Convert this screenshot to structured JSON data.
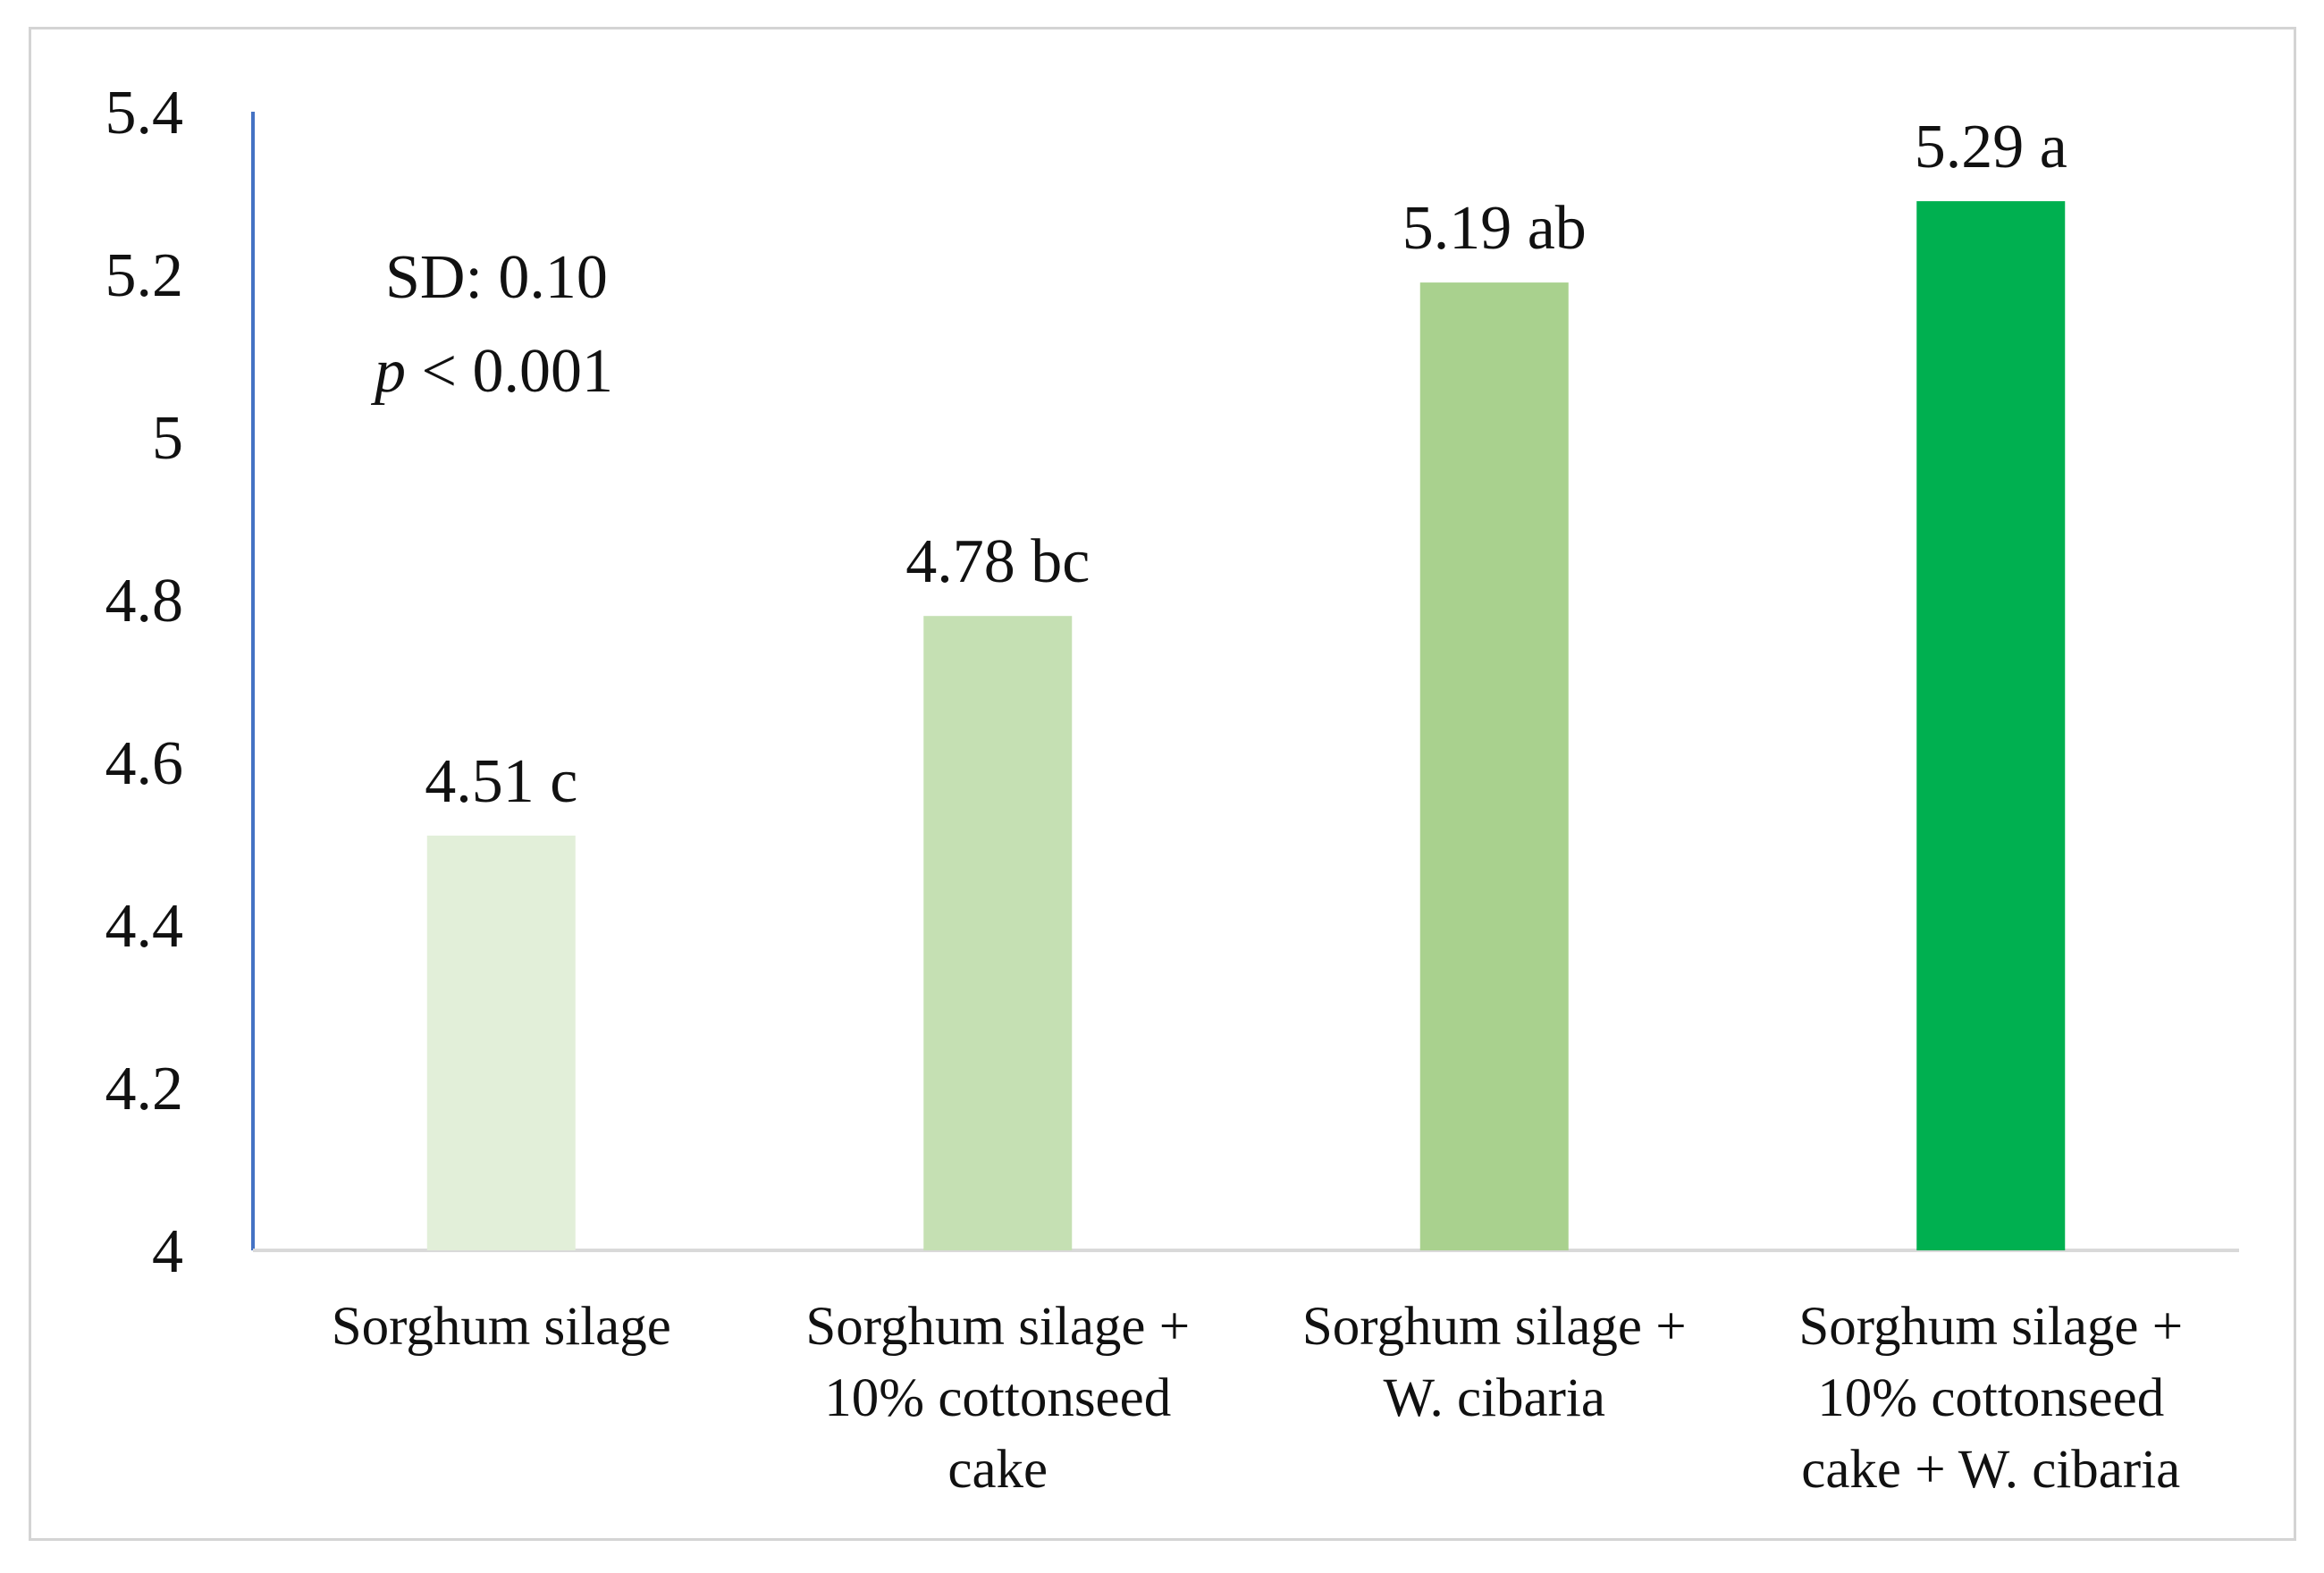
{
  "chart_data": {
    "type": "bar",
    "categories": [
      [
        "Sorghum silage"
      ],
      [
        "Sorghum silage +",
        "10% cottonseed",
        "cake"
      ],
      [
        "Sorghum silage +",
        "W. cibaria"
      ],
      [
        "Sorghum silage +",
        "10% cottonseed",
        "cake + W. cibaria"
      ]
    ],
    "values": [
      4.51,
      4.78,
      5.19,
      5.29
    ],
    "data_labels": [
      "4.51 c",
      "4.78 bc",
      "5.19 ab",
      "5.29 a"
    ],
    "colors": [
      "#e2efd9",
      "#c5e0b3",
      "#a9d18e",
      "#00b050"
    ],
    "ylim": [
      4,
      5.4
    ],
    "yticks": [
      "4",
      "4.2",
      "4.4",
      "4.6",
      "4.8",
      "5",
      "5.2",
      "5.4"
    ],
    "ytick_values": [
      4,
      4.2,
      4.4,
      4.6,
      4.8,
      5,
      5.2,
      5.4
    ],
    "annotation": {
      "sd": "SD: 0.10",
      "p_symbol": "p",
      "p_rest": " < 0.001"
    },
    "y_axis_color": "#4472c4",
    "x_axis_color": "#d9d9d9",
    "title": "",
    "xlabel": "",
    "ylabel": ""
  }
}
